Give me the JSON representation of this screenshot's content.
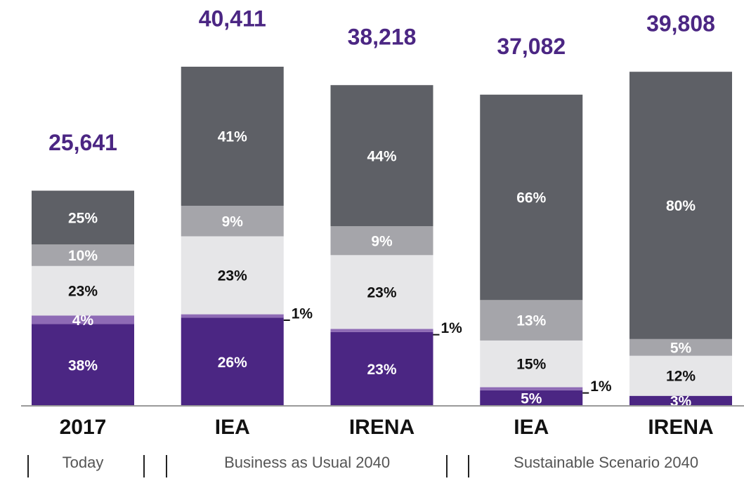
{
  "chart_data": {
    "type": "stacked-bar",
    "categories": [
      "2017",
      "IEA",
      "IRENA",
      "IEA",
      "IRENA"
    ],
    "groups": [
      {
        "label": "Today",
        "span": [
          0,
          0
        ]
      },
      {
        "label": "Business as Usual 2040",
        "span": [
          1,
          2
        ]
      },
      {
        "label": "Sustainable Scenario 2040",
        "span": [
          3,
          4
        ]
      }
    ],
    "totals": {
      "values": [
        25641,
        40411,
        38218,
        37082,
        39808
      ],
      "value_labels": [
        "25,641",
        "40,411",
        "38,218",
        "37,082",
        "39,808"
      ]
    },
    "series": [
      {
        "color": "#4b2683",
        "label_color": "#ffffff",
        "values": [
          38,
          26,
          23,
          5,
          3
        ],
        "value_labels": [
          "38%",
          "26%",
          "23%",
          "5%",
          "3%"
        ]
      },
      {
        "color": "#8e6bb5",
        "label_color": "#ffffff",
        "values": [
          4,
          1,
          1,
          1,
          null
        ],
        "value_labels": [
          "4%",
          "1%",
          "1%",
          "1%",
          null
        ]
      },
      {
        "color": "#e6e6e8",
        "label_color": "#111111",
        "values": [
          23,
          23,
          23,
          15,
          12
        ],
        "value_labels": [
          "23%",
          "23%",
          "23%",
          "15%",
          "12%"
        ]
      },
      {
        "color": "#a5a5aa",
        "label_color": "#ffffff",
        "values": [
          10,
          9,
          9,
          13,
          5
        ],
        "value_labels": [
          "10%",
          "9%",
          "9%",
          "13%",
          "5%"
        ]
      },
      {
        "color": "#5e6066",
        "label_color": "#ffffff",
        "values": [
          25,
          41,
          44,
          66,
          80
        ],
        "value_labels": [
          "25%",
          "41%",
          "44%",
          "66%",
          "80%"
        ]
      }
    ]
  }
}
